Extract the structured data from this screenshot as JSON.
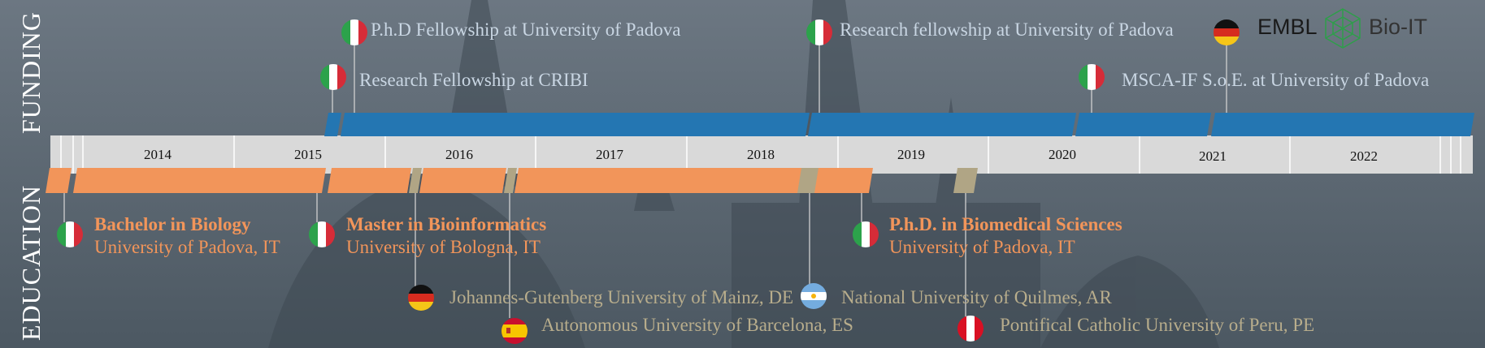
{
  "side_labels": {
    "funding": "FUNDING",
    "education": "EDUCATION"
  },
  "years": [
    "2014",
    "2015",
    "2016",
    "2017",
    "2018",
    "2019",
    "2020",
    "2021",
    "2022"
  ],
  "funding": [
    {
      "text": "P.h.D Fellowship at University of Padova",
      "flag": "italy-flag-icon"
    },
    {
      "text": "Research Fellowship at CRIBI",
      "flag": "italy-flag-icon"
    },
    {
      "text": "Research fellowship at University of Padova",
      "flag": "italy-flag-icon"
    },
    {
      "text": "MSCA-IF S.o.E. at University of Padova",
      "flag": "italy-flag-icon"
    },
    {
      "text": "",
      "flag": "germany-flag-icon"
    }
  ],
  "logos": {
    "embl": "EMBL",
    "bioit": "Bio-IT"
  },
  "education": [
    {
      "title": "Bachelor in Biology",
      "sub": "University of Padova, IT",
      "flag": "italy-flag-icon"
    },
    {
      "title": "Master in Bioinformatics",
      "sub": "University of Bologna, IT",
      "flag": "italy-flag-icon"
    },
    {
      "title": "P.h.D. in Biomedical Sciences",
      "sub": "University of Padova, IT",
      "flag": "italy-flag-icon"
    }
  ],
  "visits": [
    {
      "text": "Johannes-Gutenberg University of Mainz, DE",
      "flag": "germany-flag-icon"
    },
    {
      "text": "Autonomous University of Barcelona, ES",
      "flag": "spain-flag-icon"
    },
    {
      "text": "National University of Quilmes, AR",
      "flag": "argentina-flag-icon"
    },
    {
      "text": "Pontifical Catholic University of Peru, PE",
      "flag": "peru-flag-icon"
    }
  ],
  "colors": {
    "background": "#5f6b76",
    "funding_bar": "#2476b2",
    "education_bar": "#f2955a",
    "visit_bar": "#b0a585",
    "axis": "#d9d9d9"
  }
}
